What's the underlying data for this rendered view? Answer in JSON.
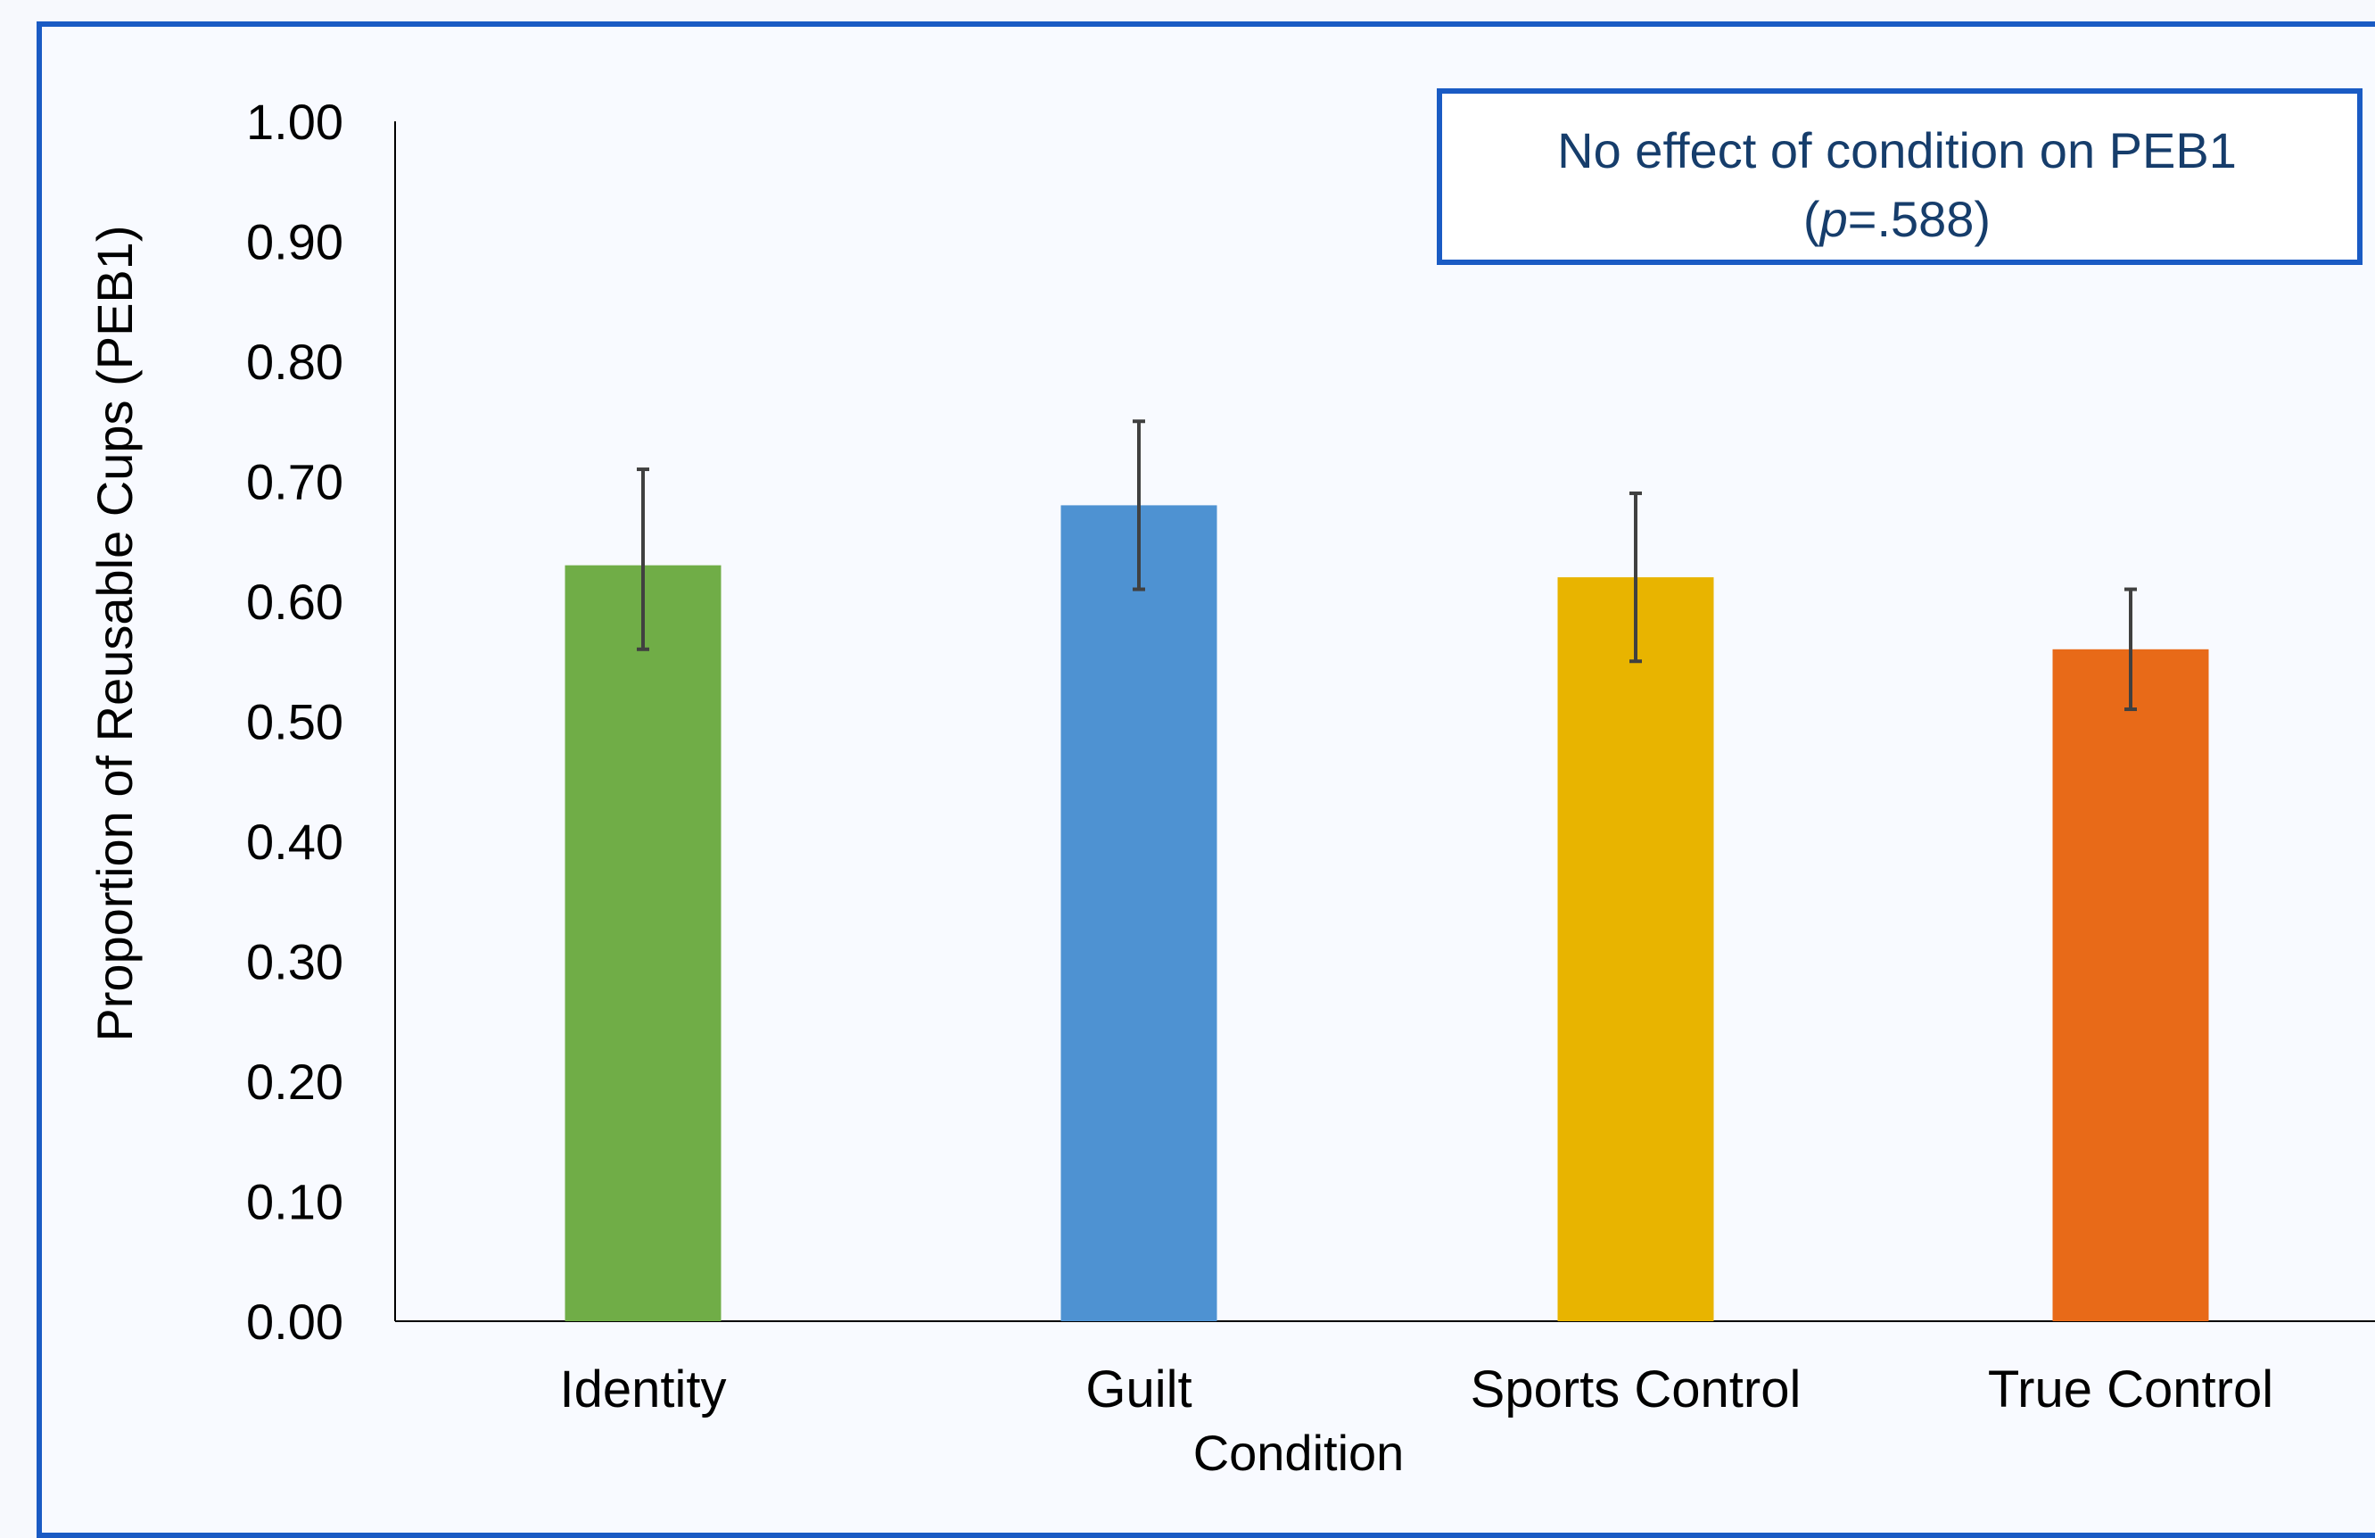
{
  "chart_data": {
    "type": "bar",
    "categories": [
      "Identity",
      "Guilt",
      "Sports Control",
      "True Control"
    ],
    "values": [
      0.63,
      0.68,
      0.62,
      0.56
    ],
    "error_low": [
      0.56,
      0.61,
      0.55,
      0.51
    ],
    "error_high": [
      0.71,
      0.75,
      0.69,
      0.61
    ],
    "colors": [
      "#70ad47",
      "#4e92d2",
      "#e8b400",
      "#e86a18"
    ],
    "xlabel": "Condition",
    "ylabel": "Proportion of Reusable Cups (PEB1)",
    "ylim": [
      0,
      1
    ],
    "yticks": [
      "0.00",
      "0.10",
      "0.20",
      "0.30",
      "0.40",
      "0.50",
      "0.60",
      "0.70",
      "0.80",
      "0.90",
      "1.00"
    ],
    "grid": false,
    "legend": "none",
    "annotation": {
      "line1": "No effect of condition on PEB1",
      "p_open": "(",
      "p_italic": "p",
      "p_rest": "=.588)"
    }
  },
  "colors": {
    "frame_border": "#1a5bc4",
    "annotation_text": "#163d6b"
  }
}
